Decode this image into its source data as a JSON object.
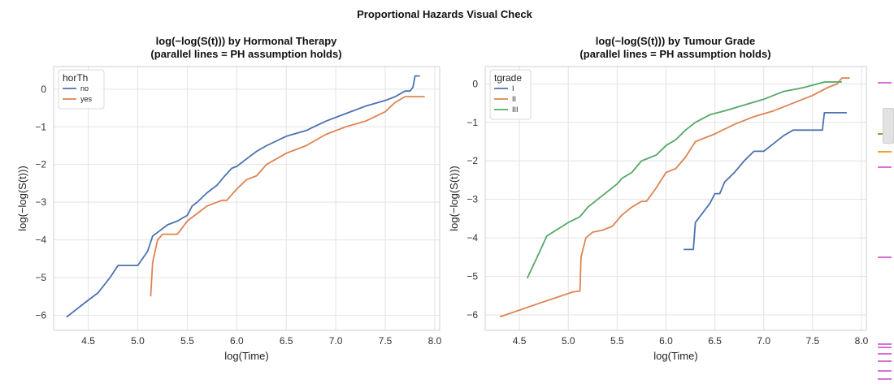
{
  "figure": {
    "suptitle": "Proportional Hazards Visual Check"
  },
  "chart_data": [
    {
      "type": "line",
      "title": "log(−log(S(t))) by Hormonal Therapy",
      "subtitle": "(parallel lines = PH assumption holds)",
      "xlabel": "log(Time)",
      "ylabel": "log(−log(S(t)))",
      "xlim": [
        4.15,
        8.05
      ],
      "ylim": [
        -6.4,
        0.6
      ],
      "xticks": [
        4.5,
        5.0,
        5.5,
        6.0,
        6.5,
        7.0,
        7.5,
        8.0
      ],
      "xtick_labels": [
        "4.5",
        "5.0",
        "5.5",
        "6.0",
        "6.5",
        "7.0",
        "7.5",
        "8.0"
      ],
      "yticks": [
        -6,
        -5,
        -4,
        -3,
        -2,
        -1,
        0
      ],
      "ytick_labels": [
        "−6",
        "−5",
        "−4",
        "−3",
        "−2",
        "−1",
        "0"
      ],
      "grid": true,
      "legend": {
        "title": "horTh",
        "placement": "top-left"
      },
      "series": [
        {
          "name": "no",
          "color": "#4c72b0",
          "x": [
            4.28,
            4.45,
            4.6,
            4.72,
            4.8,
            5.0,
            5.1,
            5.15,
            5.2,
            5.3,
            5.4,
            5.5,
            5.55,
            5.6,
            5.7,
            5.8,
            5.88,
            5.95,
            6.0,
            6.1,
            6.2,
            6.3,
            6.5,
            6.7,
            6.9,
            7.1,
            7.3,
            7.5,
            7.6,
            7.7,
            7.75,
            7.78,
            7.8,
            7.85
          ],
          "y": [
            -6.05,
            -5.7,
            -5.4,
            -5.0,
            -4.68,
            -4.68,
            -4.3,
            -3.9,
            -3.8,
            -3.6,
            -3.5,
            -3.35,
            -3.1,
            -3.0,
            -2.75,
            -2.55,
            -2.3,
            -2.1,
            -2.05,
            -1.85,
            -1.65,
            -1.5,
            -1.25,
            -1.1,
            -0.85,
            -0.65,
            -0.45,
            -0.3,
            -0.2,
            -0.05,
            -0.05,
            0.05,
            0.35,
            0.35
          ]
        },
        {
          "name": "yes",
          "color": "#dd8452",
          "x": [
            5.13,
            5.15,
            5.2,
            5.25,
            5.4,
            5.5,
            5.6,
            5.7,
            5.85,
            5.9,
            6.0,
            6.1,
            6.2,
            6.3,
            6.5,
            6.7,
            6.9,
            7.1,
            7.3,
            7.5,
            7.6,
            7.7,
            7.9
          ],
          "y": [
            -5.5,
            -4.6,
            -4.0,
            -3.85,
            -3.85,
            -3.5,
            -3.3,
            -3.1,
            -2.95,
            -2.95,
            -2.65,
            -2.4,
            -2.3,
            -2.0,
            -1.7,
            -1.5,
            -1.2,
            -1.0,
            -0.85,
            -0.6,
            -0.35,
            -0.2,
            -0.2
          ]
        }
      ]
    },
    {
      "type": "line",
      "title": "log(−log(S(t))) by Tumour Grade",
      "subtitle": "(parallel lines = PH assumption holds)",
      "xlabel": "log(Time)",
      "ylabel": "log(−log(S(t)))",
      "xlim": [
        4.15,
        8.05
      ],
      "ylim": [
        -6.4,
        0.45
      ],
      "xticks": [
        4.5,
        5.0,
        5.5,
        6.0,
        6.5,
        7.0,
        7.5,
        8.0
      ],
      "xtick_labels": [
        "4.5",
        "5.0",
        "5.5",
        "6.0",
        "6.5",
        "7.0",
        "7.5",
        "8.0"
      ],
      "yticks": [
        -6,
        -5,
        -4,
        -3,
        -2,
        -1,
        0
      ],
      "ytick_labels": [
        "−6",
        "−5",
        "−4",
        "−3",
        "−2",
        "−1",
        "0"
      ],
      "grid": true,
      "legend": {
        "title": "tgrade",
        "placement": "top-left"
      },
      "series": [
        {
          "name": "I",
          "color": "#4c72b0",
          "x": [
            6.18,
            6.28,
            6.3,
            6.45,
            6.5,
            6.55,
            6.6,
            6.7,
            6.8,
            6.9,
            7.0,
            7.1,
            7.2,
            7.3,
            7.6,
            7.62,
            7.85
          ],
          "y": [
            -4.3,
            -4.3,
            -3.6,
            -3.1,
            -2.85,
            -2.85,
            -2.55,
            -2.3,
            -2.0,
            -1.75,
            -1.75,
            -1.55,
            -1.35,
            -1.2,
            -1.2,
            -0.75,
            -0.75
          ]
        },
        {
          "name": "II",
          "color": "#dd8452",
          "x": [
            4.3,
            4.7,
            5.05,
            5.12,
            5.13,
            5.18,
            5.25,
            5.35,
            5.45,
            5.55,
            5.65,
            5.75,
            5.8,
            5.9,
            6.0,
            6.1,
            6.2,
            6.3,
            6.5,
            6.7,
            6.9,
            7.1,
            7.3,
            7.5,
            7.65,
            7.75,
            7.8,
            7.88
          ],
          "y": [
            -6.05,
            -5.7,
            -5.4,
            -5.38,
            -4.5,
            -4.0,
            -3.85,
            -3.8,
            -3.7,
            -3.4,
            -3.2,
            -3.05,
            -3.05,
            -2.7,
            -2.3,
            -2.2,
            -1.9,
            -1.5,
            -1.3,
            -1.05,
            -0.85,
            -0.7,
            -0.5,
            -0.3,
            -0.1,
            0.0,
            0.15,
            0.15
          ]
        },
        {
          "name": "III",
          "color": "#55a868",
          "x": [
            4.58,
            4.7,
            4.78,
            5.0,
            5.12,
            5.2,
            5.3,
            5.4,
            5.5,
            5.55,
            5.65,
            5.75,
            5.8,
            5.9,
            6.0,
            6.1,
            6.2,
            6.3,
            6.45,
            6.6,
            6.8,
            7.0,
            7.2,
            7.4,
            7.55,
            7.62,
            7.8
          ],
          "y": [
            -5.05,
            -4.4,
            -3.95,
            -3.6,
            -3.45,
            -3.2,
            -3.0,
            -2.8,
            -2.6,
            -2.45,
            -2.3,
            -2.0,
            -1.95,
            -1.85,
            -1.6,
            -1.45,
            -1.2,
            -1.0,
            -0.8,
            -0.7,
            -0.55,
            -0.4,
            -0.2,
            -0.1,
            0.0,
            0.05,
            0.05
          ]
        }
      ]
    }
  ],
  "scrollbar": {
    "marks": [
      {
        "y": 0.21,
        "color": "#da70d6"
      },
      {
        "y": 0.34,
        "color": "#b38f3a"
      },
      {
        "y": 0.385,
        "color": "#f0a030"
      },
      {
        "y": 0.425,
        "color": "#da70d6"
      },
      {
        "y": 0.655,
        "color": "#da70d6"
      },
      {
        "y": 0.875,
        "color": "#da70d6"
      },
      {
        "y": 0.885,
        "color": "#da70d6"
      },
      {
        "y": 0.9,
        "color": "#da70d6"
      },
      {
        "y": 0.92,
        "color": "#da70d6"
      },
      {
        "y": 0.945,
        "color": "#da70d6"
      },
      {
        "y": 0.965,
        "color": "#da70d6"
      }
    ]
  }
}
